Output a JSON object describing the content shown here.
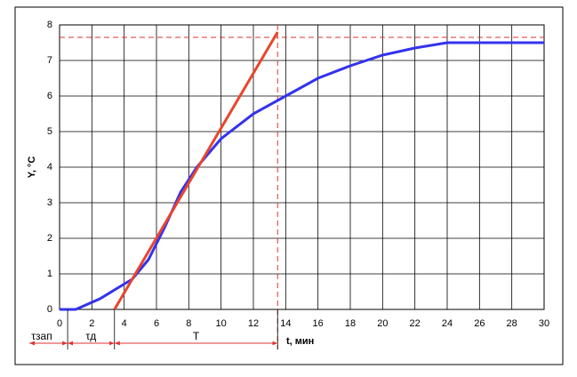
{
  "chart_data": {
    "type": "line",
    "xlabel": "t, мин",
    "ylabel": "Y, °C",
    "xlim": [
      0,
      30
    ],
    "ylim": [
      0,
      8
    ],
    "xticks": [
      0,
      2,
      4,
      6,
      8,
      10,
      12,
      14,
      16,
      18,
      20,
      22,
      24,
      26,
      28,
      30
    ],
    "yticks": [
      0,
      1,
      2,
      3,
      4,
      5,
      6,
      7,
      8
    ],
    "grid": true,
    "series": [
      {
        "color": "#3333ee",
        "x": [
          0,
          1,
          2.5,
          4.5,
          5.5,
          6.5,
          7.5,
          8.5,
          10,
          12,
          14,
          16,
          18,
          20,
          22,
          24,
          26,
          28,
          30
        ],
        "values": [
          0,
          0,
          0.3,
          0.85,
          1.4,
          2.3,
          3.3,
          4.0,
          4.8,
          5.5,
          6.0,
          6.5,
          6.85,
          7.15,
          7.35,
          7.5,
          7.5,
          7.5,
          7.5
        ]
      },
      {
        "color": "#e8452c",
        "x": [
          3.4,
          13.5
        ],
        "values": [
          0,
          7.8
        ]
      }
    ],
    "reference_lines": [
      {
        "axis": "y",
        "value": 7.65,
        "color": "#d33"
      },
      {
        "axis": "x",
        "value": 13.5,
        "color": "#d33"
      }
    ],
    "annotations": [
      {
        "text": "τзап",
        "x_range": [
          0,
          0.5
        ]
      },
      {
        "text": "τд",
        "x_range": [
          0.5,
          3.4
        ]
      },
      {
        "text": "T",
        "x_range": [
          3.4,
          13.5
        ]
      }
    ]
  }
}
